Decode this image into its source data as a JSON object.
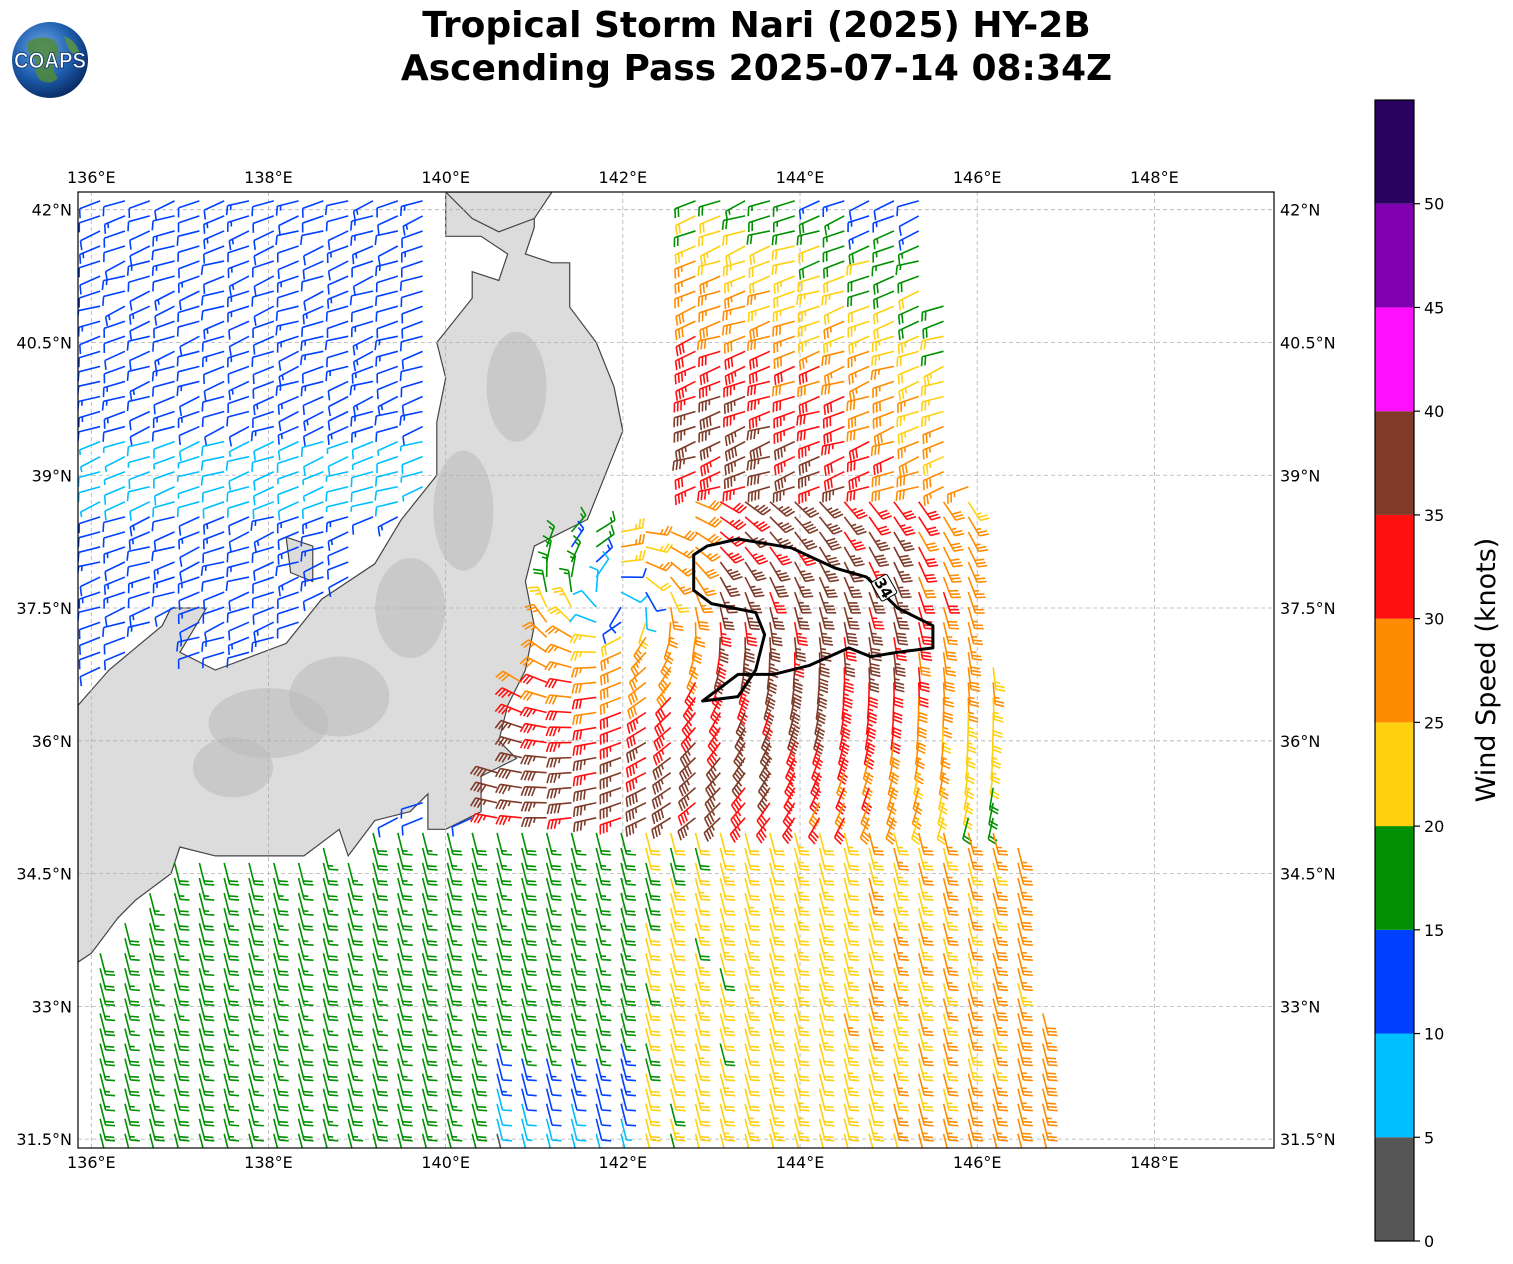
{
  "title": {
    "line1": "Tropical Storm Nari (2025) HY-2B",
    "line2": "Ascending Pass 2025-07-14 08:34Z"
  },
  "logo": {
    "text": "COAPS",
    "icon": "globe-icon"
  },
  "map": {
    "lon_range": [
      135.85,
      149.35
    ],
    "lat_range": [
      31.4,
      42.2
    ],
    "lon_ticks": [
      {
        "value": 136,
        "label": "136°E"
      },
      {
        "value": 138,
        "label": "138°E"
      },
      {
        "value": 140,
        "label": "140°E"
      },
      {
        "value": 142,
        "label": "142°E"
      },
      {
        "value": 144,
        "label": "144°E"
      },
      {
        "value": 146,
        "label": "146°E"
      },
      {
        "value": 148,
        "label": "148°E"
      }
    ],
    "lat_ticks": [
      {
        "value": 42,
        "label": "42°N"
      },
      {
        "value": 40.5,
        "label": "40.5°N"
      },
      {
        "value": 39,
        "label": "39°N"
      },
      {
        "value": 37.5,
        "label": "37.5°N"
      },
      {
        "value": 36,
        "label": "36°N"
      },
      {
        "value": 34.5,
        "label": "34.5°N"
      },
      {
        "value": 33,
        "label": "33°N"
      },
      {
        "value": 31.5,
        "label": "31.5°N"
      }
    ],
    "grid": true,
    "gridline_color": "#b0b0b0",
    "land_color": "#dcdcdc",
    "coastline_color": "#444444",
    "contour_label": "34",
    "wind_units": "knots"
  },
  "colorbar": {
    "title": "Wind Speed (knots)",
    "bins": [
      {
        "from": 0,
        "to": 5,
        "color": "#555555"
      },
      {
        "from": 5,
        "to": 10,
        "color": "#00bfff"
      },
      {
        "from": 10,
        "to": 15,
        "color": "#0040ff"
      },
      {
        "from": 15,
        "to": 20,
        "color": "#009000"
      },
      {
        "from": 20,
        "to": 25,
        "color": "#ffd010"
      },
      {
        "from": 25,
        "to": 30,
        "color": "#ff8c00"
      },
      {
        "from": 30,
        "to": 35,
        "color": "#ff1010"
      },
      {
        "from": 35,
        "to": 40,
        "color": "#7f3a28"
      },
      {
        "from": 40,
        "to": 45,
        "color": "#ff10ff"
      },
      {
        "from": 45,
        "to": 50,
        "color": "#8000b0"
      },
      {
        "from": 50,
        "to": 55,
        "color": "#2a0060"
      }
    ],
    "tick_labels": [
      "0",
      "5",
      "10",
      "15",
      "20",
      "25",
      "30",
      "35",
      "40",
      "45",
      "50"
    ]
  }
}
